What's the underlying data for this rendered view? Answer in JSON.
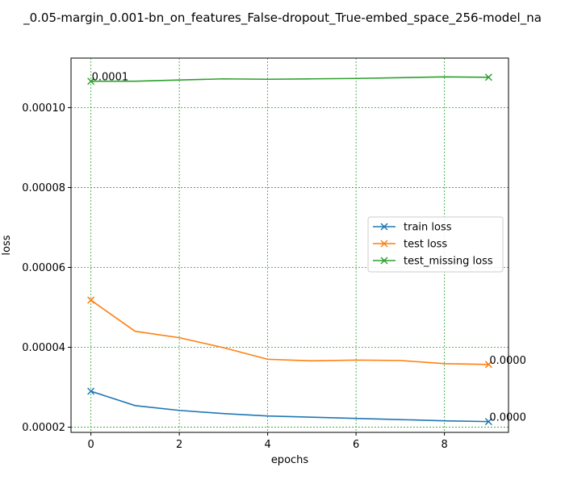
{
  "chart_data": {
    "type": "line",
    "title": "_0.05-margin_0.001-bn_on_features_False-dropout_True-embed_space_256-model_na",
    "xlabel": "epochs",
    "ylabel": "loss",
    "xlim": [
      -0.45,
      9.45
    ],
    "ylim": [
      1.87e-05,
      0.0001124
    ],
    "x_ticks": [
      0,
      2,
      4,
      6,
      8
    ],
    "x_tick_labels": [
      "0",
      "2",
      "4",
      "6",
      "8"
    ],
    "y_ticks": [
      2e-05,
      4e-05,
      6e-05,
      8e-05,
      0.0001
    ],
    "y_tick_labels": [
      "0.00002",
      "0.00004",
      "0.00006",
      "0.00008",
      "0.00010"
    ],
    "grid": true,
    "grid_style": "dashed",
    "legend_position": "center-right",
    "x": [
      0,
      1,
      2,
      3,
      4,
      5,
      6,
      7,
      8,
      9
    ],
    "series": [
      {
        "name": "train loss",
        "color": "#1f77b4",
        "values": [
          2.9e-05,
          2.54e-05,
          2.42e-05,
          2.34e-05,
          2.28e-05,
          2.25e-05,
          2.22e-05,
          2.19e-05,
          2.16e-05,
          2.14e-05
        ]
      },
      {
        "name": "test loss",
        "color": "#ff7f0e",
        "values": [
          5.18e-05,
          4.4e-05,
          4.24e-05,
          3.99e-05,
          3.7e-05,
          3.66e-05,
          3.68e-05,
          3.67e-05,
          3.59e-05,
          3.57e-05
        ]
      },
      {
        "name": "test_missing loss",
        "color": "#2ca02c",
        "values": [
          0.0001066,
          0.0001066,
          0.0001069,
          0.0001072,
          0.0001071,
          0.0001072,
          0.0001073,
          0.0001075,
          0.0001077,
          0.0001076
        ]
      }
    ],
    "annotations": [
      {
        "series": 2,
        "x": 0,
        "text": "0.0001"
      },
      {
        "series": 1,
        "x": 9,
        "text": "0.0000"
      },
      {
        "series": 0,
        "x": 9,
        "text": "0.0000"
      }
    ]
  }
}
